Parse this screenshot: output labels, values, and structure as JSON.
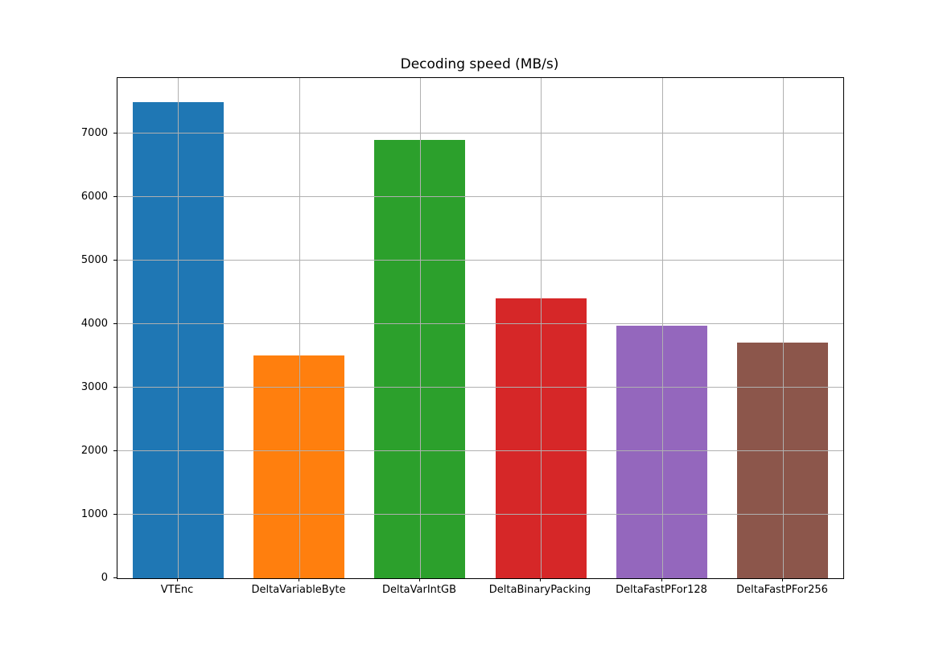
{
  "chart_data": {
    "type": "bar",
    "title": "Decoding speed (MB/s)",
    "categories": [
      "VTEnc",
      "DeltaVariableByte",
      "DeltaVarIntGB",
      "DeltaBinaryPacking",
      "DeltaFastPFor128",
      "DeltaFastPFor256"
    ],
    "values": [
      7500,
      3510,
      6900,
      4400,
      3970,
      3715
    ],
    "colors": [
      "#1f77b4",
      "#ff7f0e",
      "#2ca02c",
      "#d62728",
      "#9467bd",
      "#8c564b"
    ],
    "xlabel": "",
    "ylabel": "",
    "ylim": [
      0,
      7875
    ],
    "yticks": [
      0,
      1000,
      2000,
      3000,
      4000,
      5000,
      6000,
      7000
    ],
    "grid": true,
    "grid_over_bars": true,
    "legend_position": "none",
    "grid_color": "#b0b0b0",
    "spine_color": "#000000",
    "tick_color": "#000000",
    "background_color": "#ffffff",
    "bar_width_fraction": 0.75
  }
}
